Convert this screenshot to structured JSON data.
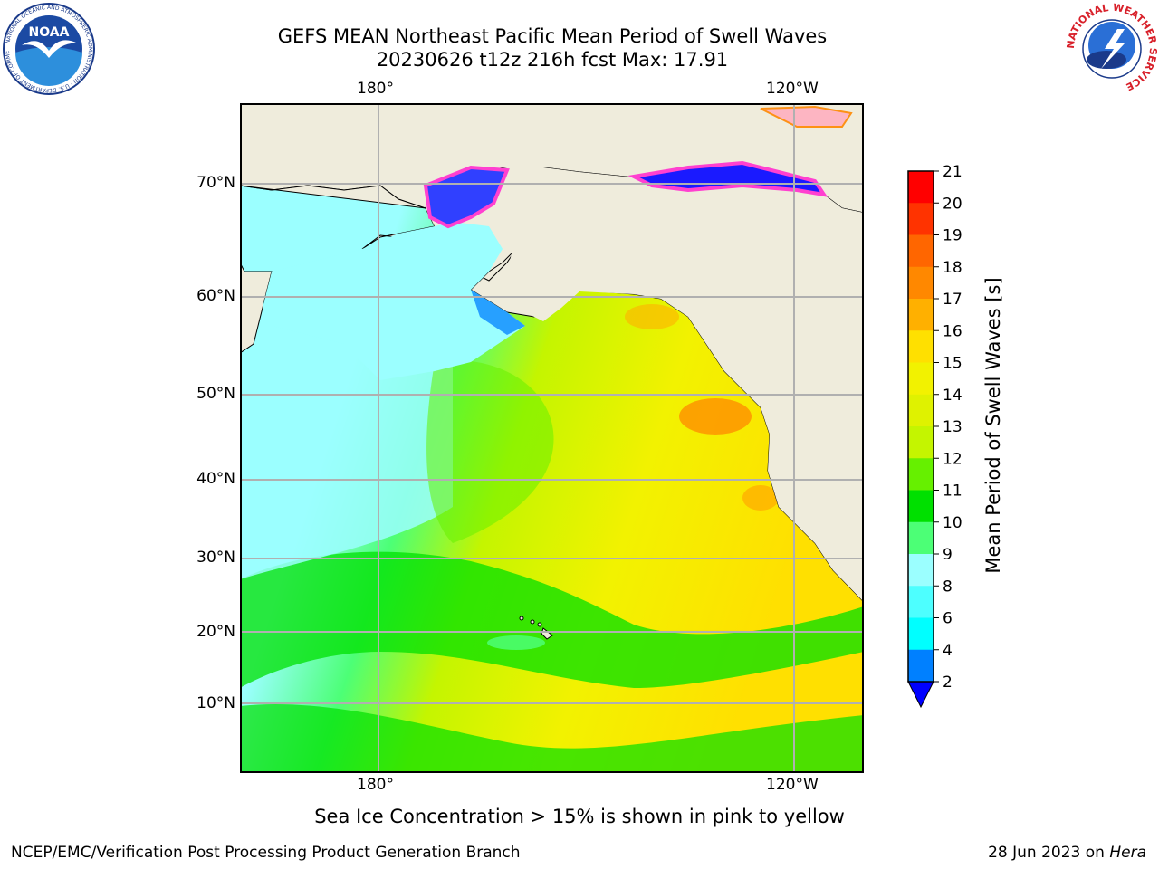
{
  "header": {
    "title_line1": "GEFS MEAN Northeast Pacific Mean Period of Swell Waves",
    "title_line2": "20230626 t12z 216h fcst   Max: 17.91"
  },
  "logos": {
    "noaa_text": "NOAA",
    "noaa_ring_text": "NATIONAL OCEANIC AND ATMOSPHERIC ADMINISTRATION · U.S. DEPARTMENT OF COMMERCE",
    "nws_ring_text": "NATIONAL WEATHER SERVICE"
  },
  "map": {
    "lon_ticks_top": [
      "180°",
      "120°W"
    ],
    "lon_ticks_bottom": [
      "180°",
      "120°W"
    ],
    "lat_ticks": [
      "70°N",
      "60°N",
      "50°N",
      "40°N",
      "30°N",
      "20°N",
      "10°N"
    ],
    "colors": {
      "land": "#efecdc",
      "grid": "#b0b0b0",
      "coast": "#000000"
    }
  },
  "colorbar": {
    "label": "Mean Period of Swell Waves [s]",
    "ticks": [
      "21",
      "20",
      "19",
      "18",
      "17",
      "16",
      "15",
      "14",
      "13",
      "12",
      "11",
      "10",
      "9",
      "8",
      "6",
      "4",
      "2"
    ],
    "colors": [
      "#ff0000",
      "#ff3300",
      "#ff6600",
      "#ff8800",
      "#ffb000",
      "#ffe000",
      "#f2f200",
      "#dff200",
      "#c4f500",
      "#66f000",
      "#00e000",
      "#4cff76",
      "#9bffff",
      "#4dffff",
      "#00ffff",
      "#0080ff"
    ],
    "extend_color": "#0000ff"
  },
  "footnote": "Sea Ice Concentration > 15% is shown in pink to yellow",
  "footer": {
    "left": "NCEP/EMC/Verification Post Processing Product Generation Branch",
    "right_prefix": "28 Jun 2023 on ",
    "right_host": "Hera"
  }
}
